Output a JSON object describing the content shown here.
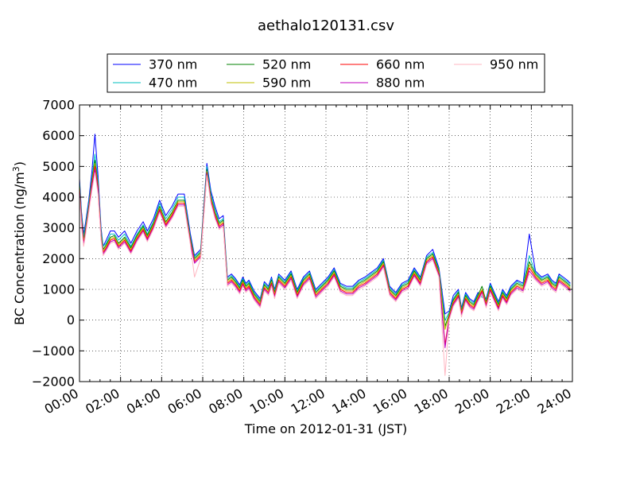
{
  "chart_data": {
    "type": "line",
    "title": "aethalo120131.csv",
    "xlabel": "Time on 2012-01-31 (JST)",
    "ylabel": "BC Concentration (ng/m",
    "ylabel_sup": "3",
    "ylabel_suffix": ")",
    "x_tick_labels": [
      "00:00",
      "02:00",
      "04:00",
      "06:00",
      "08:00",
      "10:00",
      "12:00",
      "14:00",
      "16:00",
      "18:00",
      "20:00",
      "22:00",
      "24:00"
    ],
    "y_tick_labels": [
      "−2000",
      "−1000",
      "0",
      "1000",
      "2000",
      "3000",
      "4000",
      "5000",
      "6000",
      "7000"
    ],
    "xlim_hours": [
      0,
      24
    ],
    "ylim": [
      -2000,
      7000
    ],
    "grid": true,
    "legend_position": "top-center",
    "x_hours": [
      0,
      0.1,
      0.2,
      0.3,
      0.45,
      0.6,
      0.75,
      0.9,
      1.05,
      1.15,
      1.3,
      1.5,
      1.7,
      1.9,
      2.2,
      2.5,
      2.8,
      3.1,
      3.3,
      3.6,
      3.9,
      4.2,
      4.5,
      4.8,
      5.1,
      5.4,
      5.6,
      5.9,
      6.2,
      6.4,
      6.6,
      6.8,
      7.0,
      7.2,
      7.4,
      7.6,
      7.8,
      7.95,
      8.1,
      8.25,
      8.5,
      8.8,
      9.0,
      9.2,
      9.35,
      9.5,
      9.7,
      10.0,
      10.3,
      10.6,
      10.9,
      11.2,
      11.5,
      11.8,
      12.1,
      12.4,
      12.7,
      13.0,
      13.3,
      13.6,
      13.9,
      14.2,
      14.5,
      14.8,
      15.1,
      15.4,
      15.7,
      16.0,
      16.3,
      16.6,
      16.9,
      17.2,
      17.5,
      17.8,
      18.0,
      18.2,
      18.45,
      18.6,
      18.8,
      19.0,
      19.2,
      19.4,
      19.6,
      19.8,
      20.0,
      20.2,
      20.4,
      20.6,
      20.8,
      21.0,
      21.3,
      21.6,
      21.9,
      22.2,
      22.5,
      22.8,
      23.0,
      23.2,
      23.35,
      23.55,
      23.75,
      23.9
    ],
    "series": [
      {
        "name": "370 nm",
        "color": "#0000ff",
        "values": [
          4600,
          3500,
          2800,
          3200,
          3900,
          4800,
          6050,
          4700,
          3000,
          2400,
          2600,
          2900,
          2900,
          2700,
          2900,
          2500,
          2900,
          3200,
          2900,
          3300,
          3900,
          3400,
          3700,
          4100,
          4100,
          2800,
          2100,
          2300,
          5100,
          4200,
          3700,
          3300,
          3400,
          1400,
          1500,
          1350,
          1150,
          1400,
          1200,
          1300,
          950,
          700,
          1250,
          1100,
          1400,
          1000,
          1500,
          1300,
          1600,
          1000,
          1400,
          1600,
          1000,
          1200,
          1400,
          1700,
          1200,
          1100,
          1100,
          1300,
          1400,
          1550,
          1700,
          2000,
          1100,
          900,
          1200,
          1300,
          1700,
          1400,
          2100,
          2300,
          1700,
          200,
          300,
          800,
          1000,
          400,
          900,
          700,
          600,
          900,
          800,
          700,
          1200,
          900,
          600,
          1000,
          800,
          1100,
          1300,
          1200,
          2800,
          1600,
          1400,
          1500,
          1300,
          1200,
          1500,
          1400,
          1300,
          1200
        ]
      },
      {
        "name": "470 nm",
        "color": "#00bfbf",
        "values": [
          4500,
          3400,
          2700,
          3100,
          3800,
          4600,
          5400,
          4500,
          2900,
          2400,
          2500,
          2800,
          2800,
          2600,
          2800,
          2400,
          2800,
          3100,
          2800,
          3200,
          3800,
          3300,
          3600,
          4000,
          4000,
          2700,
          2050,
          2250,
          5000,
          4100,
          3600,
          3200,
          3300,
          1350,
          1450,
          1300,
          1100,
          1350,
          1150,
          1250,
          900,
          650,
          1200,
          1050,
          1350,
          950,
          1450,
          1250,
          1550,
          950,
          1350,
          1550,
          950,
          1150,
          1350,
          1650,
          1150,
          1050,
          1050,
          1250,
          1350,
          1500,
          1650,
          1950,
          1050,
          850,
          1150,
          1250,
          1650,
          1350,
          2050,
          2200,
          1650,
          0,
          250,
          700,
          950,
          350,
          850,
          650,
          550,
          850,
          750,
          650,
          1150,
          850,
          550,
          950,
          750,
          1050,
          1250,
          1150,
          2100,
          1550,
          1350,
          1450,
          1250,
          1150,
          1450,
          1350,
          1250,
          1150
        ]
      },
      {
        "name": "520 nm",
        "color": "#008000",
        "values": [
          4400,
          3300,
          2600,
          3000,
          3700,
          4500,
          5200,
          4400,
          2800,
          2300,
          2450,
          2700,
          2750,
          2500,
          2700,
          2350,
          2750,
          3050,
          2750,
          3150,
          3700,
          3200,
          3500,
          3900,
          3900,
          2650,
          2000,
          2200,
          4900,
          4000,
          3500,
          3150,
          3250,
          1300,
          1400,
          1250,
          1050,
          1300,
          1100,
          1200,
          850,
          600,
          1150,
          1000,
          1300,
          900,
          1400,
          1200,
          1500,
          900,
          1300,
          1500,
          900,
          1100,
          1300,
          1600,
          1100,
          1000,
          1000,
          1200,
          1300,
          1450,
          1600,
          1900,
          1000,
          800,
          1100,
          1200,
          1600,
          1300,
          2000,
          2150,
          1600,
          -200,
          200,
          650,
          900,
          300,
          800,
          600,
          500,
          800,
          1100,
          600,
          1100,
          800,
          500,
          900,
          700,
          1000,
          1200,
          1100,
          1900,
          1500,
          1300,
          1400,
          1200,
          1100,
          1400,
          1300,
          1200,
          1100
        ]
      },
      {
        "name": "590 nm",
        "color": "#bfbf00",
        "values": [
          4350,
          3250,
          2550,
          2950,
          3650,
          4450,
          5100,
          4350,
          2750,
          2250,
          2400,
          2650,
          2700,
          2450,
          2650,
          2300,
          2700,
          3000,
          2700,
          3100,
          3650,
          3150,
          3450,
          3850,
          3850,
          2600,
          1950,
          2150,
          4850,
          3950,
          3450,
          3100,
          3200,
          1250,
          1350,
          1200,
          1000,
          1250,
          1050,
          1150,
          800,
          550,
          1100,
          950,
          1250,
          850,
          1350,
          1150,
          1450,
          850,
          1250,
          1450,
          850,
          1050,
          1250,
          1550,
          1050,
          950,
          950,
          1150,
          1250,
          1400,
          1550,
          1850,
          950,
          750,
          1050,
          1150,
          1550,
          1250,
          1950,
          2100,
          1550,
          -300,
          150,
          600,
          850,
          250,
          750,
          550,
          450,
          750,
          1000,
          550,
          1050,
          750,
          450,
          850,
          650,
          950,
          1150,
          1050,
          1800,
          1450,
          1250,
          1350,
          1150,
          1050,
          1350,
          1250,
          1150,
          1050
        ]
      },
      {
        "name": "660 nm",
        "color": "#ff0000",
        "values": [
          4300,
          3200,
          2500,
          2900,
          3600,
          4400,
          5000,
          4300,
          2700,
          2200,
          2350,
          2600,
          2650,
          2400,
          2600,
          2250,
          2650,
          2950,
          2650,
          3050,
          3600,
          3100,
          3400,
          3800,
          3800,
          2550,
          1900,
          2100,
          4800,
          3900,
          3400,
          3050,
          3150,
          1200,
          1300,
          1150,
          950,
          1200,
          1000,
          1100,
          750,
          500,
          1050,
          900,
          1200,
          800,
          1300,
          1100,
          1400,
          800,
          1200,
          1400,
          800,
          1000,
          1200,
          1500,
          1000,
          900,
          900,
          1100,
          1200,
          1350,
          1500,
          1800,
          900,
          700,
          1000,
          1100,
          1500,
          1200,
          1900,
          2050,
          1500,
          -800,
          100,
          550,
          800,
          200,
          700,
          500,
          400,
          700,
          950,
          500,
          1000,
          700,
          400,
          800,
          600,
          900,
          1100,
          1000,
          1700,
          1400,
          1200,
          1300,
          1100,
          1000,
          1300,
          1200,
          1100,
          1000
        ]
      },
      {
        "name": "880 nm",
        "color": "#bf00bf",
        "values": [
          4200,
          3100,
          2450,
          2850,
          3550,
          4300,
          4900,
          4200,
          2650,
          2150,
          2300,
          2550,
          2600,
          2350,
          2550,
          2200,
          2600,
          2900,
          2600,
          3000,
          3550,
          3050,
          3350,
          3750,
          3750,
          2500,
          1850,
          2050,
          4750,
          3850,
          3350,
          3000,
          3100,
          1150,
          1250,
          1100,
          900,
          1150,
          950,
          1050,
          700,
          450,
          1000,
          850,
          1150,
          750,
          1250,
          1050,
          1350,
          750,
          1150,
          1350,
          750,
          950,
          1150,
          1450,
          950,
          850,
          850,
          1050,
          1150,
          1300,
          1450,
          1750,
          850,
          650,
          950,
          1050,
          1450,
          1150,
          1850,
          2000,
          1450,
          -900,
          50,
          500,
          750,
          150,
          650,
          450,
          350,
          650,
          900,
          450,
          950,
          650,
          350,
          750,
          550,
          850,
          1050,
          950,
          1600,
          1350,
          1150,
          1250,
          1050,
          950,
          1250,
          1150,
          1050,
          950
        ]
      },
      {
        "name": "950 nm",
        "color": "#ffb6c1",
        "values": [
          4100,
          3000,
          2400,
          2800,
          3500,
          4200,
          4800,
          4100,
          2600,
          2100,
          2250,
          2500,
          2550,
          2300,
          2500,
          2150,
          2550,
          2850,
          2550,
          2950,
          3500,
          3000,
          3300,
          3700,
          3700,
          2450,
          1400,
          2000,
          4700,
          3800,
          3300,
          2950,
          3050,
          1100,
          1200,
          1050,
          850,
          1100,
          900,
          1000,
          650,
          400,
          950,
          800,
          1100,
          700,
          1200,
          1000,
          1300,
          700,
          1100,
          1300,
          700,
          900,
          1100,
          1400,
          900,
          800,
          800,
          1000,
          1100,
          1250,
          1400,
          1700,
          800,
          600,
          900,
          1000,
          1400,
          1100,
          1800,
          1950,
          1400,
          -1800,
          0,
          450,
          700,
          100,
          600,
          400,
          300,
          600,
          850,
          400,
          900,
          600,
          300,
          700,
          500,
          800,
          1000,
          900,
          1500,
          1300,
          1100,
          1200,
          1000,
          900,
          1200,
          1100,
          1000,
          900
        ]
      }
    ]
  }
}
